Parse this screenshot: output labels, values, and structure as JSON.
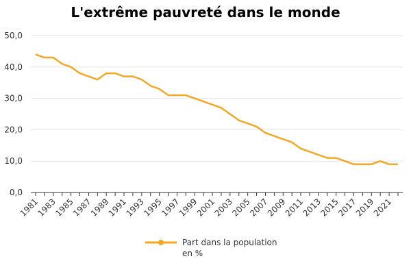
{
  "chart_data": {
    "type": "line",
    "title": "L'extrême pauvreté dans le monde",
    "xlabel": "",
    "ylabel": "",
    "x": [
      1981,
      1982,
      1983,
      1984,
      1985,
      1986,
      1987,
      1988,
      1989,
      1990,
      1991,
      1992,
      1993,
      1994,
      1995,
      1996,
      1997,
      1998,
      1999,
      2000,
      2001,
      2002,
      2003,
      2004,
      2005,
      2006,
      2007,
      2008,
      2009,
      2010,
      2011,
      2012,
      2013,
      2014,
      2015,
      2016,
      2017,
      2018,
      2019,
      2020,
      2021,
      2022
    ],
    "series": [
      {
        "name": "Part dans la population en %",
        "values": [
          44,
          43,
          43,
          41,
          40,
          38,
          37,
          36,
          38,
          38,
          37,
          37,
          36,
          34,
          33,
          31,
          31,
          31,
          30,
          29,
          28,
          27,
          25,
          23,
          22,
          21,
          19,
          18,
          17,
          16,
          14,
          13,
          12,
          11,
          11,
          10,
          9,
          9,
          9,
          10,
          9,
          9
        ]
      }
    ],
    "ylim": [
      0,
      50
    ],
    "yticks": [
      "0,0",
      "10,0",
      "20,0",
      "30,0",
      "40,0",
      "50,0"
    ],
    "xtick_labels": [
      "1981",
      "1983",
      "1985",
      "1987",
      "1989",
      "1991",
      "1993",
      "1995",
      "1997",
      "1999",
      "2001",
      "2003",
      "2005",
      "2007",
      "2009",
      "2011",
      "2013",
      "2015",
      "2017",
      "2019",
      "2021"
    ],
    "grid": true,
    "legend_position": "bottom",
    "legend_lines": [
      "Part dans la population",
      "en %"
    ],
    "colors": {
      "series": "#F5A623"
    }
  }
}
